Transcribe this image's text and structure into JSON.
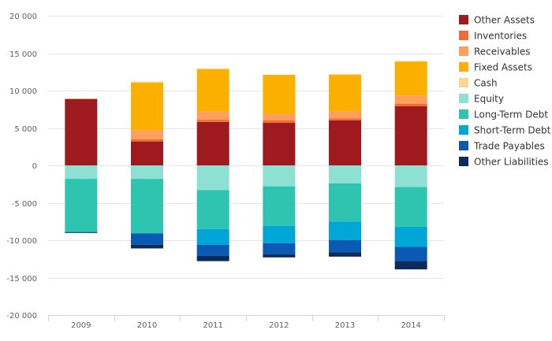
{
  "chart_data": {
    "type": "bar",
    "stacked": true,
    "categories": [
      "2009",
      "2010",
      "2011",
      "2012",
      "2013",
      "2014"
    ],
    "ylim": [
      -20000,
      20000
    ],
    "yticks": [
      20000,
      15000,
      10000,
      5000,
      0,
      -5000,
      -10000,
      -15000,
      -20000
    ],
    "ytick_labels": [
      "20 000",
      "15 000",
      "10 000",
      "5 000",
      "0",
      "-5 000",
      "-10 000",
      "-15 000",
      "-20 000"
    ],
    "grid": true,
    "legend_position": "right",
    "series": [
      {
        "name": "Other Assets",
        "color": "#9E1A1F",
        "values": [
          8900,
          3200,
          5800,
          5700,
          6000,
          7900
        ]
      },
      {
        "name": "Inventories",
        "color": "#F26B35",
        "values": [
          0,
          300,
          300,
          300,
          300,
          350
        ]
      },
      {
        "name": "Receivables",
        "color": "#FDA05E",
        "values": [
          0,
          1200,
          1100,
          900,
          900,
          1100
        ]
      },
      {
        "name": "Fixed Assets",
        "color": "#FBB000",
        "values": [
          0,
          6350,
          5700,
          5200,
          4900,
          4550
        ]
      },
      {
        "name": "Cash",
        "color": "#FDD78F",
        "values": [
          50,
          150,
          0,
          0,
          100,
          50
        ]
      },
      {
        "name": "Equity",
        "color": "#8EE0D3",
        "values": [
          -1800,
          -1800,
          -3300,
          -2800,
          -2400,
          -2900
        ]
      },
      {
        "name": "Long-Term Debt",
        "color": "#2FC4B0",
        "values": [
          -7100,
          -7300,
          -5200,
          -5300,
          -5100,
          -5300
        ]
      },
      {
        "name": "Short-Term Debt",
        "color": "#00A6D6",
        "values": [
          0,
          0,
          -2100,
          -2300,
          -2500,
          -2700
        ]
      },
      {
        "name": "Trade Payables",
        "color": "#0A59B3",
        "values": [
          -50,
          -1500,
          -1500,
          -1500,
          -1600,
          -1900
        ]
      },
      {
        "name": "Other Liabilities",
        "color": "#0B2C5A",
        "values": [
          -50,
          -500,
          -700,
          -400,
          -600,
          -1100
        ]
      }
    ]
  }
}
